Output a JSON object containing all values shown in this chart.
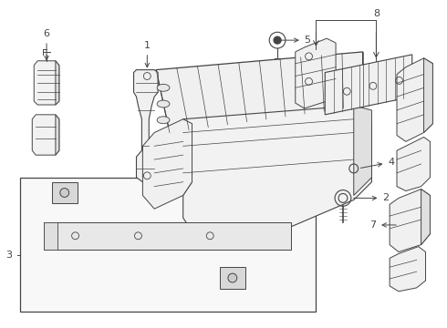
{
  "background_color": "#ffffff",
  "line_color": "#444444",
  "label_color": "#000000",
  "figsize": [
    4.9,
    3.6
  ],
  "dpi": 100
}
